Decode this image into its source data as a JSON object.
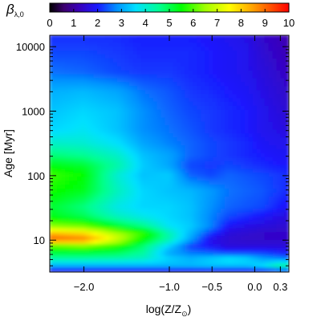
{
  "chart_data": {
    "type": "heatmap",
    "title": "",
    "colorbar": {
      "label_main": "β",
      "label_sub": "λ,0",
      "min": 0,
      "max": 10,
      "ticks": [
        "0",
        "1",
        "2",
        "3",
        "4",
        "5",
        "6",
        "7",
        "8",
        "9",
        "10"
      ],
      "colormap": "rainbow-idl"
    },
    "xaxis": {
      "label_main": "log(Z/Z",
      "label_sub": "⊙",
      "label_end": ")",
      "range": [
        -2.4,
        0.4
      ],
      "scale": "linear",
      "ticks": [
        {
          "value": -2.0,
          "label": "−2.0"
        },
        {
          "value": -1.0,
          "label": "−1.0"
        },
        {
          "value": -0.5,
          "label": "−0.5"
        },
        {
          "value": 0.0,
          "label": "0.0"
        },
        {
          "value": 0.3,
          "label": "0.3"
        }
      ]
    },
    "yaxis": {
      "label": "Age [Myr]",
      "range": [
        3.2,
        15000
      ],
      "scale": "log",
      "ticks": [
        {
          "value": 10,
          "label": "10"
        },
        {
          "value": 100,
          "label": "100"
        },
        {
          "value": 1000,
          "label": "1000"
        },
        {
          "value": 10000,
          "label": "10000"
        }
      ]
    },
    "x": [
      -2.4,
      -2.0,
      -1.6,
      -1.3,
      -1.0,
      -0.75,
      -0.5,
      -0.3,
      -0.1,
      0.1,
      0.3,
      0.4
    ],
    "y_log10": [
      0.5,
      0.6,
      0.7,
      0.8,
      0.9,
      1.0,
      1.1,
      1.2,
      1.35,
      1.5,
      1.75,
      2.0,
      2.15,
      2.3,
      2.5,
      2.7,
      3.0,
      3.3,
      3.6,
      3.9,
      4.2
    ],
    "z": [
      [
        1.6,
        1.6,
        1.6,
        1.6,
        1.6,
        1.6,
        1.6,
        1.6,
        1.6,
        1.6,
        1.6,
        1.6
      ],
      [
        3.2,
        3.2,
        3.2,
        3.2,
        3.2,
        3.2,
        3.3,
        3.3,
        3.3,
        3.6,
        4.5,
        4.5
      ],
      [
        4.4,
        4.4,
        4.3,
        4.1,
        3.5,
        3.2,
        3.5,
        3.8,
        3.6,
        3.0,
        2.8,
        2.7
      ],
      [
        5.2,
        5.2,
        5.0,
        4.5,
        3.0,
        2.6,
        2.4,
        2.2,
        2.2,
        2.2,
        2.0,
        1.9
      ],
      [
        6.0,
        6.3,
        5.7,
        4.8,
        3.5,
        2.3,
        1.9,
        1.6,
        1.6,
        1.6,
        1.6,
        1.6
      ],
      [
        9.3,
        9.0,
        7.0,
        5.5,
        4.3,
        3.0,
        1.7,
        1.5,
        1.4,
        1.4,
        1.4,
        1.4
      ],
      [
        8.2,
        7.8,
        6.6,
        5.8,
        4.3,
        3.2,
        2.2,
        1.6,
        1.5,
        1.4,
        1.4,
        1.4
      ],
      [
        6.5,
        6.3,
        5.3,
        4.7,
        3.7,
        3.4,
        2.7,
        1.9,
        1.7,
        1.6,
        1.5,
        1.5
      ],
      [
        5.4,
        5.0,
        4.2,
        3.8,
        3.5,
        3.3,
        2.7,
        2.3,
        2.1,
        1.9,
        1.7,
        1.6
      ],
      [
        5.2,
        4.7,
        3.8,
        3.5,
        3.5,
        3.3,
        2.8,
        2.5,
        2.4,
        2.3,
        2.0,
        1.9
      ],
      [
        5.6,
        5.3,
        4.2,
        3.5,
        3.3,
        3.2,
        2.9,
        2.6,
        2.5,
        2.4,
        2.2,
        2.1
      ],
      [
        5.9,
        5.5,
        4.0,
        3.3,
        3.4,
        2.5,
        2.3,
        2.5,
        2.4,
        2.3,
        2.2,
        2.1
      ],
      [
        5.4,
        5.2,
        4.4,
        3.4,
        3.0,
        2.3,
        2.2,
        2.3,
        2.2,
        2.1,
        2.0,
        2.0
      ],
      [
        4.8,
        4.6,
        4.1,
        3.3,
        3.0,
        2.5,
        2.3,
        2.2,
        2.1,
        2.0,
        1.9,
        1.9
      ],
      [
        4.1,
        4.0,
        3.6,
        3.0,
        2.7,
        2.5,
        2.3,
        2.2,
        2.1,
        1.9,
        1.8,
        1.8
      ],
      [
        3.5,
        3.7,
        3.3,
        2.8,
        2.6,
        2.4,
        2.2,
        2.1,
        2.0,
        1.8,
        1.7,
        1.6
      ],
      [
        3.3,
        3.5,
        3.3,
        2.8,
        2.5,
        2.3,
        2.2,
        2.1,
        2.0,
        1.8,
        1.6,
        1.5
      ],
      [
        3.1,
        3.2,
        3.0,
        2.6,
        2.4,
        2.2,
        2.1,
        2.0,
        1.9,
        1.7,
        1.5,
        1.4
      ],
      [
        2.6,
        2.5,
        2.3,
        2.2,
        2.2,
        2.1,
        2.0,
        1.9,
        1.8,
        1.6,
        1.4,
        1.3
      ],
      [
        2.3,
        2.3,
        2.2,
        2.1,
        2.1,
        2.1,
        2.0,
        1.9,
        1.8,
        1.5,
        1.3,
        1.2
      ],
      [
        2.1,
        2.1,
        2.1,
        2.0,
        2.0,
        2.0,
        1.9,
        1.8,
        1.7,
        1.4,
        1.2,
        1.1
      ]
    ]
  }
}
